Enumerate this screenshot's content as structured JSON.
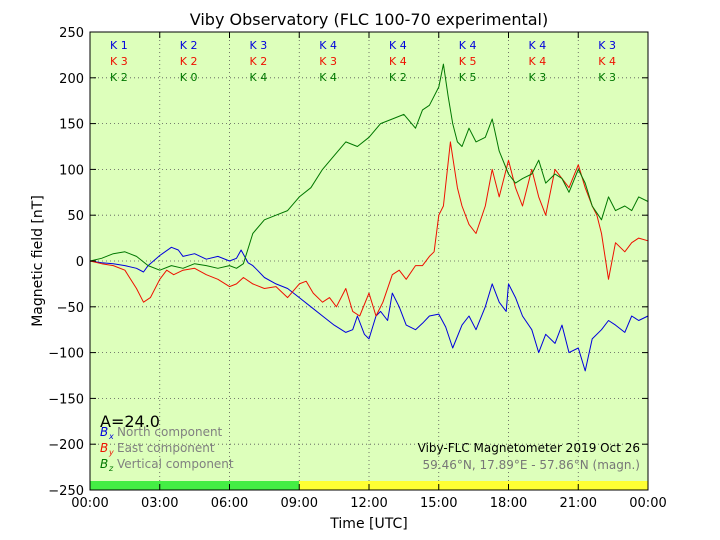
{
  "chart_data": {
    "type": "line",
    "title": "Viby Observatory (FLC 100-70 experimental)",
    "xlabel": "Time [UTC]",
    "ylabel": "Magnetic field [nT]",
    "xlim": [
      0,
      24
    ],
    "ylim": [
      -250,
      250
    ],
    "x_ticks": [
      0,
      3,
      6,
      9,
      12,
      15,
      18,
      21,
      24
    ],
    "x_tick_labels": [
      "00:00",
      "03:00",
      "06:00",
      "09:00",
      "12:00",
      "15:00",
      "18:00",
      "21:00",
      "00:00"
    ],
    "y_ticks": [
      -250,
      -200,
      -150,
      -100,
      -50,
      0,
      50,
      100,
      150,
      200,
      250
    ],
    "y_tick_labels": [
      "−250",
      "−200",
      "−150",
      "−100",
      "−50",
      "0",
      "50",
      "100",
      "150",
      "200",
      "250"
    ],
    "grid": true,
    "background_color": "#ddffbb",
    "activity_index": "A=24.0",
    "station_info": {
      "line1": "Viby-FLC Magnetometer 2019 Oct 26",
      "line2": "59.46°N, 17.89°E - 57.86°N (magn.)"
    },
    "legend": [
      {
        "symbol": "B",
        "subscript": "x",
        "label": "North component",
        "color": "#0000dd"
      },
      {
        "symbol": "B",
        "subscript": "y",
        "label": "East component",
        "color": "#ee1100"
      },
      {
        "symbol": "B",
        "subscript": "z",
        "label": "Vertical component",
        "color": "#007700"
      }
    ],
    "k_index": {
      "rows": [
        {
          "component": "x",
          "color": "#0000dd",
          "labels": [
            "K 1",
            "K 2",
            "K 3",
            "K 4",
            "K 4",
            "K 4",
            "K 4",
            "K 3"
          ]
        },
        {
          "component": "y",
          "color": "#ee1100",
          "labels": [
            "K 3",
            "K 2",
            "K 2",
            "K 3",
            "K 4",
            "K 5",
            "K 4",
            "K 4"
          ]
        },
        {
          "component": "z",
          "color": "#007700",
          "labels": [
            "K 2",
            "K 0",
            "K 4",
            "K 4",
            "K 2",
            "K 5",
            "K 3",
            "K 3"
          ]
        }
      ]
    },
    "status_bar": [
      {
        "x0": 0,
        "x1": 9,
        "color": "#44ee44"
      },
      {
        "x0": 9,
        "x1": 24,
        "color": "#ffff33"
      }
    ],
    "series": [
      {
        "name": "North component",
        "color": "#0000dd",
        "x": [
          0,
          0.5,
          1,
          1.5,
          2,
          2.3,
          2.5,
          3,
          3.5,
          3.8,
          4,
          4.5,
          5,
          5.5,
          6,
          6.3,
          6.5,
          6.8,
          7,
          7.2,
          7.5,
          8,
          8.5,
          9,
          9.5,
          10,
          10.5,
          11,
          11.3,
          11.5,
          11.8,
          12,
          12.3,
          12.5,
          12.8,
          13,
          13.3,
          13.6,
          14,
          14.3,
          14.6,
          15,
          15.3,
          15.6,
          16,
          16.3,
          16.6,
          17,
          17.3,
          17.6,
          17.9,
          18,
          18.3,
          18.6,
          19,
          19.3,
          19.6,
          20,
          20.3,
          20.6,
          21,
          21.3,
          21.6,
          22,
          22.3,
          22.6,
          23,
          23.3,
          23.6,
          24
        ],
        "y": [
          0,
          -2,
          -3,
          -5,
          -8,
          -12,
          -5,
          6,
          15,
          12,
          5,
          8,
          2,
          5,
          0,
          3,
          12,
          -2,
          -5,
          -10,
          -18,
          -25,
          -30,
          -40,
          -50,
          -60,
          -70,
          -78,
          -75,
          -60,
          -80,
          -85,
          -60,
          -55,
          -65,
          -35,
          -50,
          -70,
          -75,
          -68,
          -60,
          -58,
          -72,
          -95,
          -70,
          -60,
          -75,
          -50,
          -25,
          -45,
          -55,
          -25,
          -40,
          -60,
          -75,
          -100,
          -80,
          -90,
          -70,
          -100,
          -95,
          -120,
          -85,
          -75,
          -65,
          -70,
          -78,
          -60,
          -65,
          -60
        ]
      },
      {
        "name": "East component",
        "color": "#ee1100",
        "x": [
          0,
          0.5,
          1,
          1.5,
          2,
          2.3,
          2.6,
          3,
          3.3,
          3.6,
          4,
          4.5,
          5,
          5.5,
          6,
          6.3,
          6.6,
          7,
          7.5,
          8,
          8.5,
          9,
          9.3,
          9.6,
          10,
          10.3,
          10.6,
          11,
          11.3,
          11.6,
          12,
          12.3,
          12.6,
          13,
          13.3,
          13.6,
          14,
          14.3,
          14.6,
          14.8,
          15,
          15.2,
          15.5,
          15.8,
          16,
          16.3,
          16.6,
          17,
          17.3,
          17.6,
          18,
          18.3,
          18.6,
          19,
          19.3,
          19.6,
          20,
          20.3,
          20.6,
          21,
          21.3,
          21.6,
          21.8,
          22,
          22.3,
          22.6,
          23,
          23.3,
          23.6,
          24
        ],
        "y": [
          0,
          -3,
          -5,
          -10,
          -30,
          -45,
          -40,
          -20,
          -10,
          -15,
          -10,
          -8,
          -15,
          -20,
          -28,
          -25,
          -18,
          -25,
          -30,
          -28,
          -40,
          -25,
          -22,
          -35,
          -45,
          -40,
          -50,
          -30,
          -55,
          -60,
          -35,
          -60,
          -45,
          -15,
          -10,
          -20,
          -5,
          -5,
          5,
          10,
          50,
          60,
          130,
          80,
          60,
          40,
          30,
          60,
          100,
          70,
          110,
          80,
          60,
          100,
          70,
          50,
          100,
          90,
          80,
          105,
          80,
          60,
          50,
          30,
          -20,
          20,
          10,
          20,
          25,
          22
        ]
      },
      {
        "name": "Vertical component",
        "color": "#007700",
        "x": [
          0,
          0.5,
          1,
          1.5,
          2,
          2.5,
          3,
          3.5,
          4,
          4.5,
          5,
          5.5,
          6,
          6.3,
          6.6,
          7,
          7.5,
          8,
          8.5,
          9,
          9.5,
          10,
          10.5,
          11,
          11.5,
          12,
          12.5,
          13,
          13.5,
          14,
          14.3,
          14.6,
          15,
          15.2,
          15.4,
          15.6,
          15.8,
          16,
          16.3,
          16.6,
          17,
          17.3,
          17.6,
          18,
          18.3,
          18.6,
          19,
          19.3,
          19.6,
          20,
          20.3,
          20.6,
          21,
          21.3,
          21.6,
          22,
          22.3,
          22.6,
          23,
          23.3,
          23.6,
          24
        ],
        "y": [
          0,
          3,
          8,
          10,
          5,
          -5,
          -10,
          -5,
          -8,
          -3,
          -5,
          -8,
          -5,
          -8,
          -3,
          30,
          45,
          50,
          55,
          70,
          80,
          100,
          115,
          130,
          125,
          135,
          150,
          155,
          160,
          145,
          165,
          170,
          190,
          215,
          180,
          150,
          130,
          125,
          145,
          130,
          135,
          155,
          120,
          95,
          85,
          90,
          95,
          110,
          85,
          95,
          90,
          75,
          100,
          85,
          60,
          45,
          70,
          55,
          60,
          55,
          70,
          65
        ]
      }
    ]
  }
}
